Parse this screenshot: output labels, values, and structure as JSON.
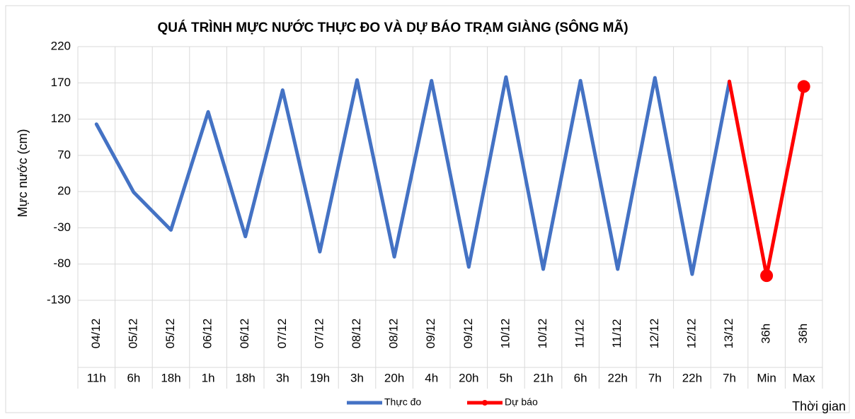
{
  "chart_data": {
    "type": "line",
    "title": "QUÁ TRÌNH MỰC NƯỚC THỰC ĐO VÀ DỰ BÁO TRẠM  GIÀNG (SÔNG MÃ)",
    "y_label": "Mực nước (cm)",
    "x_label": "Thời gian",
    "categories": [
      "04/12",
      "05/12",
      "05/12",
      "06/12",
      "06/12",
      "07/12",
      "07/12",
      "08/12",
      "08/12",
      "09/12",
      "09/12",
      "10/12",
      "10/12",
      "11/12",
      "11/12",
      "12/12",
      "12/12",
      "13/12",
      "36h",
      "36h"
    ],
    "hours": [
      "11h",
      "6h",
      "18h",
      "1h",
      "18h",
      "3h",
      "19h",
      "3h",
      "20h",
      "4h",
      "20h",
      "5h",
      "21h",
      "6h",
      "22h",
      "7h",
      "22h",
      "7h",
      "Min",
      "Max"
    ],
    "series": [
      {
        "name": "Thực đo",
        "color": "#4472c4",
        "markers": false,
        "values": [
          113,
          19,
          -33,
          130,
          -42,
          160,
          -63,
          174,
          -70,
          173,
          -84,
          178,
          -87,
          173,
          -87,
          177,
          -94,
          172,
          null,
          null
        ]
      },
      {
        "name": "Dự báo",
        "color": "#ff0000",
        "markers": true,
        "values": [
          null,
          null,
          null,
          null,
          null,
          null,
          null,
          null,
          null,
          null,
          null,
          null,
          null,
          null,
          null,
          null,
          null,
          172,
          -96,
          165
        ]
      }
    ],
    "ylim": [
      -130,
      220
    ],
    "yticks": [
      -130,
      -80,
      -30,
      20,
      70,
      120,
      170,
      220
    ],
    "grid": true,
    "legend": "bottom"
  }
}
